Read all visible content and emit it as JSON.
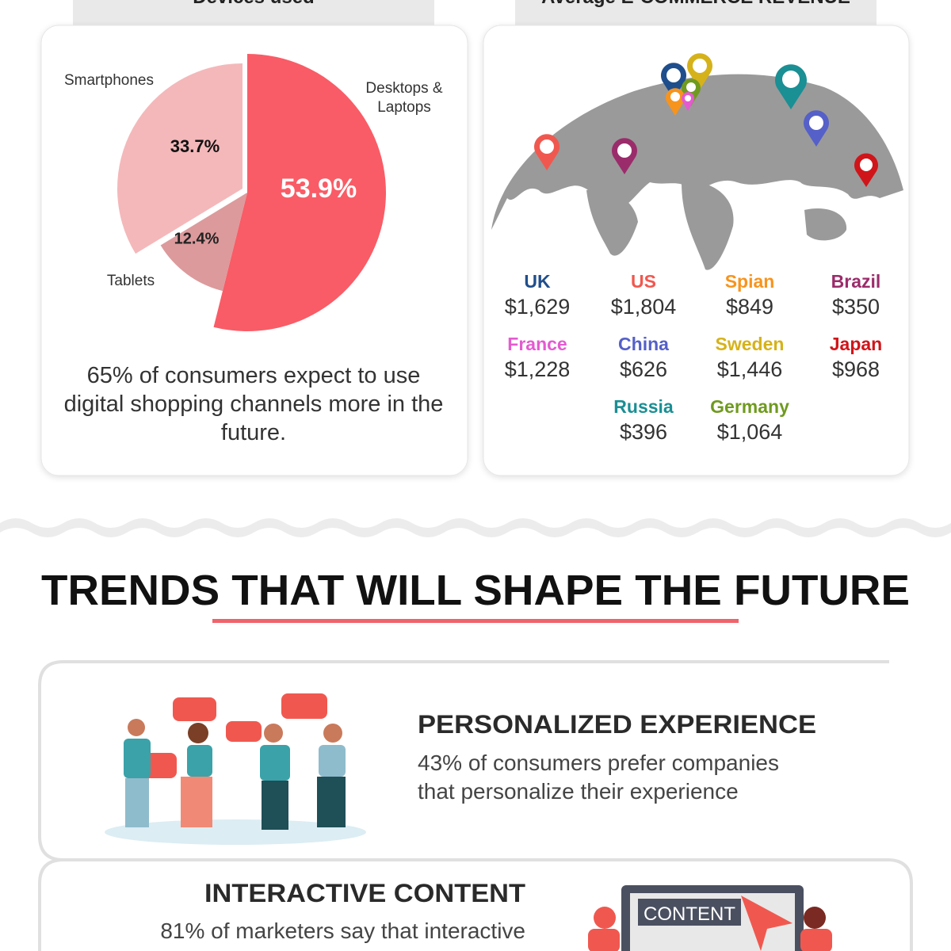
{
  "chart_data": {
    "type": "pie",
    "title": "Devices used",
    "categories": [
      "Desktops & Laptops",
      "Tablets",
      "Smartphones"
    ],
    "values": [
      53.9,
      12.4,
      33.7
    ],
    "value_labels": [
      "53.9%",
      "12.4%",
      "33.7%"
    ],
    "colors": [
      "#f95c66",
      "#dc9a9c",
      "#f4b8ba"
    ]
  },
  "devices_caption": "65% of consumers expect to use digital shopping channels more in the future.",
  "revenue": {
    "title": "Average E-COMMERCE REVENUE",
    "items": [
      {
        "country": "UK",
        "amount": "$1,629",
        "color": "#1f4e8c"
      },
      {
        "country": "US",
        "amount": "$1,804",
        "color": "#f0584f"
      },
      {
        "country": "Spian",
        "amount": "$849",
        "color": "#f7941d"
      },
      {
        "country": "Brazil",
        "amount": "$350",
        "color": "#9b2c6b"
      },
      {
        "country": "France",
        "amount": "$1,228",
        "color": "#e45bd0"
      },
      {
        "country": "China",
        "amount": "$626",
        "color": "#5560c8"
      },
      {
        "country": "Sweden",
        "amount": "$1,446",
        "color": "#d6b21a"
      },
      {
        "country": "Japan",
        "amount": "$968",
        "color": "#d0151a"
      },
      {
        "country": "Russia",
        "amount": "$396",
        "color": "#1a8f94"
      },
      {
        "country": "Germany",
        "amount": "$1,064",
        "color": "#6f9a1f"
      }
    ]
  },
  "trends": {
    "title": "TRENDS THAT WILL SHAPE THE FUTURE",
    "items": [
      {
        "heading": "PERSONALIZED EXPERIENCE",
        "lines": [
          "43% of consumers prefer companies",
          "that personalize their experience"
        ]
      },
      {
        "heading": "INTERACTIVE CONTENT",
        "lines": [
          "81% of marketers say that interactive"
        ],
        "badge": "CONTENT"
      }
    ]
  }
}
